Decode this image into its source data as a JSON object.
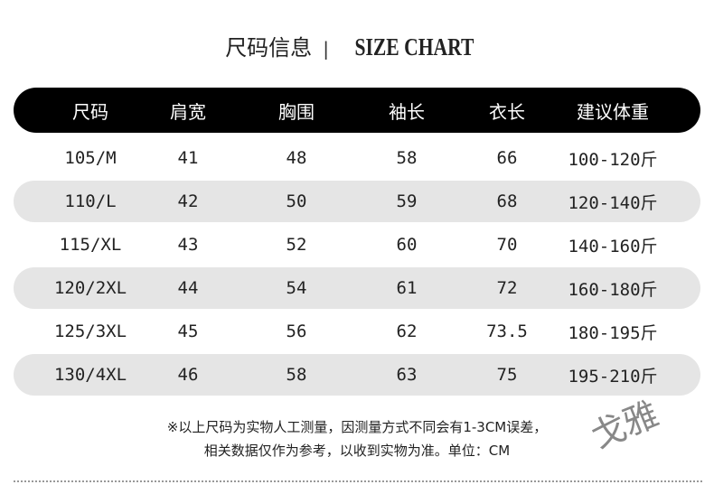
{
  "title": {
    "cn": "尺码信息",
    "separator": "|",
    "en": "SIZE CHART"
  },
  "chart_data": {
    "type": "table",
    "columns": [
      "尺码",
      "肩宽",
      "胸围",
      "袖长",
      "衣长",
      "建议体重"
    ],
    "rows": [
      [
        "105/M",
        "41",
        "48",
        "58",
        "66",
        "100-120斤"
      ],
      [
        "110/L",
        "42",
        "50",
        "59",
        "68",
        "120-140斤"
      ],
      [
        "115/XL",
        "43",
        "52",
        "60",
        "70",
        "140-160斤"
      ],
      [
        "120/2XL",
        "44",
        "54",
        "61",
        "72",
        "160-180斤"
      ],
      [
        "125/3XL",
        "45",
        "56",
        "62",
        "73.5",
        "180-195斤"
      ],
      [
        "130/4XL",
        "46",
        "58",
        "63",
        "75",
        "195-210斤"
      ]
    ]
  },
  "notes": {
    "line1": "※以上尺码为实物人工测量，因测量方式不同会有1-3CM误差，",
    "line2": "相关数据仅作为参考，以收到实物为准。单位：CM"
  },
  "watermark": "戈雅",
  "colors": {
    "header_bg": "#000000",
    "header_text": "#ffffff",
    "stripe": "#e5e5e5"
  }
}
